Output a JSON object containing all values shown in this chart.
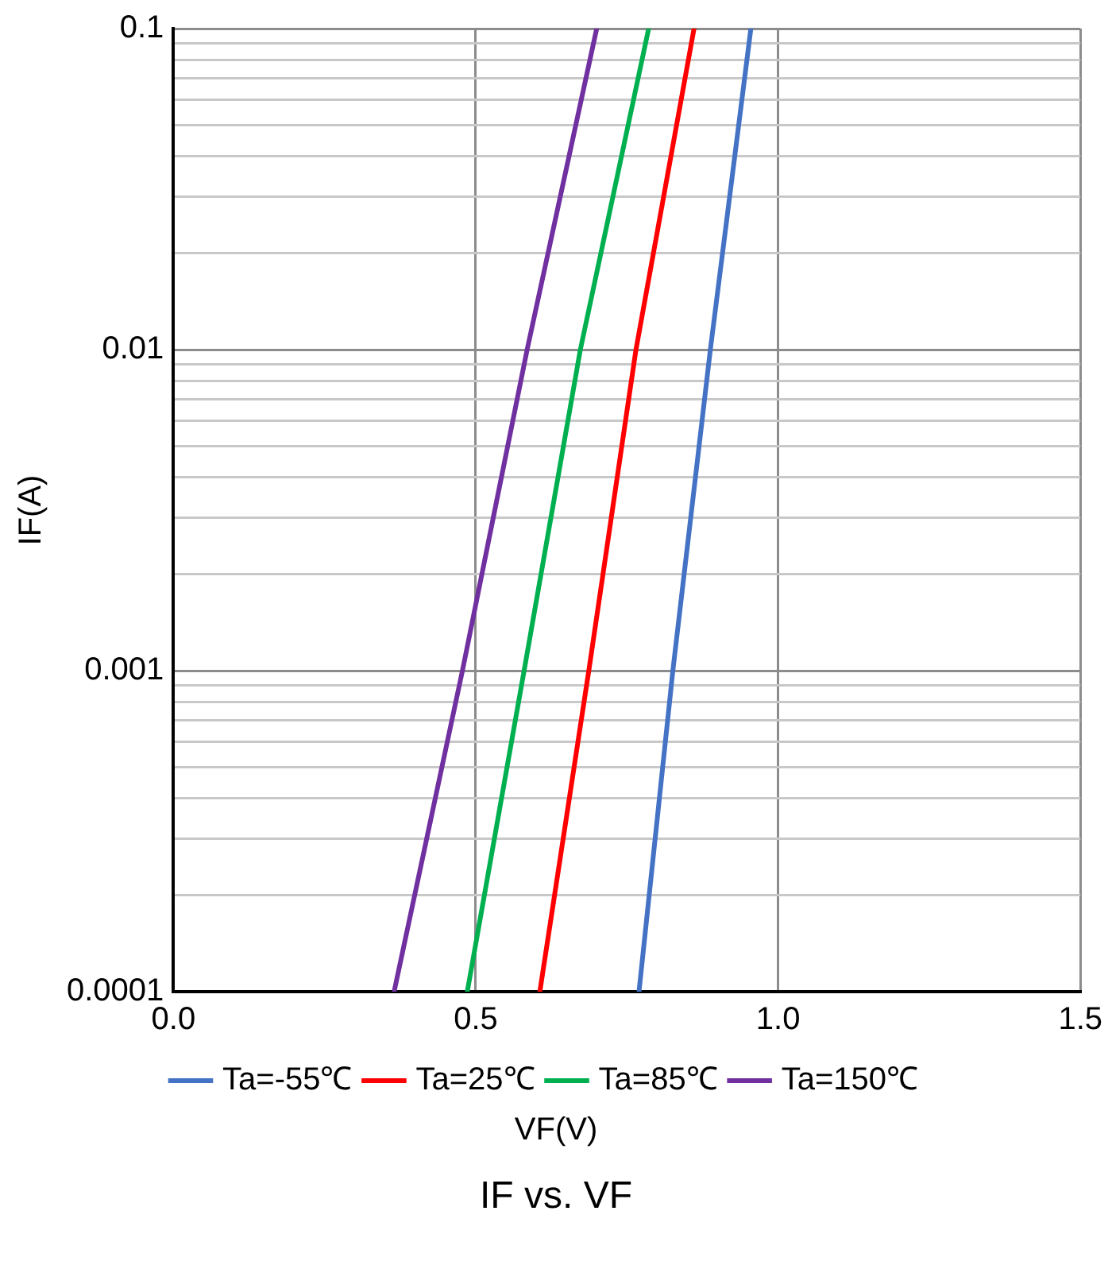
{
  "chart_data": {
    "type": "line",
    "title": "IF vs. VF",
    "xlabel": "VF(V)",
    "ylabel": "IF(A)",
    "series": [
      {
        "name": "Ta=-55℃",
        "color": "#4472c4",
        "x": [
          0.77,
          0.826,
          0.888,
          0.955
        ],
        "values": [
          0.0001,
          0.001,
          0.01,
          0.1
        ]
      },
      {
        "name": "Ta=25℃",
        "color": "#ff0000",
        "x": [
          0.606,
          0.687,
          0.765,
          0.861
        ],
        "values": [
          0.0001,
          0.001,
          0.01,
          0.1
        ]
      },
      {
        "name": "Ta=85℃",
        "color": "#00b050",
        "x": [
          0.486,
          0.58,
          0.673,
          0.786
        ],
        "values": [
          0.0001,
          0.001,
          0.01,
          0.1
        ]
      },
      {
        "name": "Ta=150℃",
        "color": "#7030a0",
        "x": [
          0.365,
          0.478,
          0.585,
          0.7
        ],
        "values": [
          0.0001,
          0.001,
          0.01,
          0.1
        ]
      }
    ],
    "xlim": [
      0,
      1.5
    ],
    "xticks": [
      {
        "value": 0,
        "label": "0.0"
      },
      0.5,
      {
        "value": 1,
        "label": "1.0"
      },
      1.5
    ],
    "ylim": [
      0.0001,
      0.1
    ],
    "yticks": [
      0.0001,
      {
        "value": 0.0002,
        "label": null
      },
      {
        "value": 0.0003,
        "label": null
      },
      {
        "value": 0.0004,
        "label": null
      },
      {
        "value": 0.0005,
        "label": null
      },
      {
        "value": 0.0006,
        "label": null
      },
      {
        "value": 0.0007,
        "label": null
      },
      {
        "value": 0.0008,
        "label": null
      },
      {
        "value": 0.0009,
        "label": null
      },
      0.001,
      {
        "value": 0.002,
        "label": null
      },
      {
        "value": 0.003,
        "label": null
      },
      {
        "value": 0.004,
        "label": null
      },
      {
        "value": 0.005,
        "label": null
      },
      {
        "value": 0.006,
        "label": null
      },
      {
        "value": 0.007,
        "label": null
      },
      {
        "value": 0.008,
        "label": null
      },
      {
        "value": 0.009,
        "label": null
      },
      0.01,
      {
        "value": 0.02,
        "label": null
      },
      {
        "value": 0.03,
        "label": null
      },
      {
        "value": 0.04,
        "label": null
      },
      {
        "value": 0.05,
        "label": null
      },
      {
        "value": 0.06,
        "label": null
      },
      {
        "value": 0.07,
        "label": null
      },
      {
        "value": 0.08,
        "label": null
      },
      {
        "value": 0.09,
        "label": null
      },
      0.1
    ],
    "log": "y",
    "grid": true,
    "legend": "bottom",
    "marker": "none",
    "line_style": "solid"
  }
}
